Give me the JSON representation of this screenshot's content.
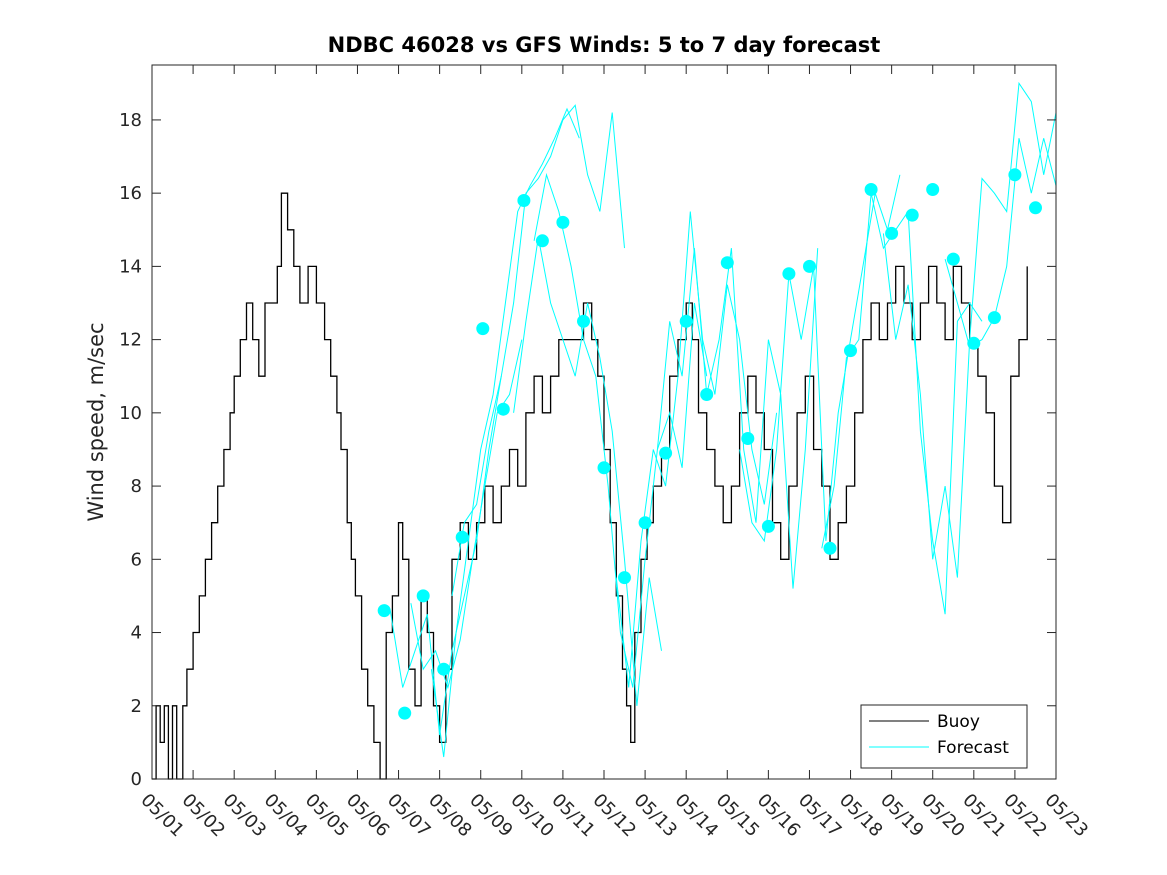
{
  "chart_data": {
    "type": "line",
    "title": "NDBC 46028 vs GFS Winds: 5 to 7 day forecast",
    "xlabel": "",
    "ylabel": "Wind speed, m/sec",
    "x_unit": "day of month (May)",
    "xlim": [
      1,
      23
    ],
    "ylim": [
      0,
      19.5
    ],
    "x_ticks": [
      1,
      2,
      3,
      4,
      5,
      6,
      7,
      8,
      9,
      10,
      11,
      12,
      13,
      14,
      15,
      16,
      17,
      18,
      19,
      20,
      21,
      22,
      23
    ],
    "x_tick_labels": [
      "05/01",
      "05/02",
      "05/03",
      "05/04",
      "05/05",
      "05/06",
      "05/07",
      "05/08",
      "05/09",
      "05/10",
      "05/11",
      "05/12",
      "05/13",
      "05/14",
      "05/15",
      "05/16",
      "05/17",
      "05/18",
      "05/19",
      "05/20",
      "05/21",
      "05/22",
      "05/23"
    ],
    "y_ticks": [
      0,
      2,
      4,
      6,
      8,
      10,
      12,
      14,
      16,
      18
    ],
    "grid": false,
    "legend": {
      "position": "bottom-right",
      "entries": [
        "Buoy",
        "Forecast"
      ]
    },
    "colors": {
      "buoy": "#000000",
      "forecast": "#00ffff"
    },
    "series": [
      {
        "name": "Buoy",
        "kind": "line",
        "x": [
          1.0,
          1.1,
          1.2,
          1.3,
          1.4,
          1.5,
          1.6,
          1.75,
          1.85,
          2.0,
          2.15,
          2.3,
          2.45,
          2.6,
          2.75,
          2.9,
          3.0,
          3.15,
          3.3,
          3.45,
          3.6,
          3.75,
          3.9,
          4.05,
          4.15,
          4.3,
          4.45,
          4.6,
          4.8,
          5.0,
          5.2,
          5.35,
          5.5,
          5.6,
          5.75,
          5.85,
          5.95,
          6.1,
          6.25,
          6.4,
          6.55,
          6.7,
          6.85,
          7.0,
          7.1,
          7.25,
          7.4,
          7.55,
          7.7,
          7.85,
          8.0,
          8.15,
          8.3,
          8.5,
          8.7,
          8.9,
          9.1,
          9.3,
          9.5,
          9.7,
          9.9,
          10.1,
          10.3,
          10.5,
          10.7,
          10.9,
          11.1,
          11.3,
          11.5,
          11.7,
          11.85,
          12.0,
          12.15,
          12.3,
          12.45,
          12.55,
          12.65,
          12.75,
          12.9,
          13.05,
          13.2,
          13.4,
          13.6,
          13.8,
          14.0,
          14.15,
          14.3,
          14.5,
          14.7,
          14.9,
          15.1,
          15.3,
          15.5,
          15.7,
          15.9,
          16.1,
          16.3,
          16.5,
          16.7,
          16.9,
          17.1,
          17.3,
          17.5,
          17.7,
          17.9,
          18.1,
          18.3,
          18.5,
          18.7,
          18.9,
          19.1,
          19.3,
          19.5,
          19.7,
          19.9,
          20.1,
          20.3,
          20.5,
          20.7,
          20.9,
          21.1,
          21.3,
          21.5,
          21.7,
          21.9,
          22.1,
          22.3
        ],
        "y": [
          0,
          2,
          1,
          2,
          0,
          2,
          0,
          2,
          3,
          4,
          5,
          6,
          7,
          8,
          9,
          10,
          11,
          12,
          13,
          12,
          11,
          13,
          13,
          14,
          16,
          15,
          14,
          13,
          14,
          13,
          12,
          11,
          10,
          9,
          7,
          6,
          5,
          3,
          2,
          1,
          0,
          4,
          5,
          7,
          6,
          3,
          2,
          5,
          4,
          2,
          1,
          3,
          6,
          7,
          6,
          7,
          8,
          7,
          8,
          9,
          8,
          10,
          11,
          10,
          11,
          12,
          12,
          12,
          13,
          12,
          11,
          9,
          7,
          5,
          3,
          2,
          1,
          4,
          6,
          7,
          8,
          9,
          11,
          12,
          13,
          12,
          10,
          9,
          8,
          7,
          8,
          10,
          11,
          10,
          9,
          7,
          6,
          8,
          10,
          11,
          9,
          8,
          6,
          7,
          8,
          10,
          12,
          13,
          12,
          13,
          14,
          13,
          12,
          13,
          14,
          13,
          12,
          14,
          13,
          12,
          11,
          10,
          8,
          7,
          11,
          12,
          14
        ]
      },
      {
        "name": "Forecast",
        "kind": "line",
        "x": [
          6.8,
          7.1,
          7.4,
          7.7,
          8.0,
          8.3,
          8.6,
          8.9,
          9.2,
          9.5
        ],
        "y": [
          4.6,
          2.5,
          3.5,
          4.5,
          1.2,
          3.5,
          5.0,
          6.5,
          9.0,
          11.0
        ]
      },
      {
        "name": "Forecast",
        "kind": "line",
        "x": [
          7.3,
          7.6,
          7.9,
          8.2,
          8.5,
          8.8,
          9.1,
          9.4,
          9.7,
          10.0
        ],
        "y": [
          4.8,
          3.0,
          3.5,
          2.5,
          3.8,
          6.0,
          8.0,
          10.0,
          10.5,
          12.0
        ]
      },
      {
        "name": "Forecast",
        "kind": "line",
        "x": [
          7.8,
          8.1,
          8.4,
          8.7,
          9.0,
          9.3,
          9.6,
          9.9,
          10.2,
          10.5,
          10.8,
          11.1,
          11.4
        ],
        "y": [
          3.0,
          0.6,
          4.0,
          6.5,
          9.0,
          10.5,
          13.0,
          15.5,
          16.2,
          16.8,
          17.5,
          18.3,
          17.5
        ]
      },
      {
        "name": "Forecast",
        "kind": "line",
        "x": [
          8.3,
          8.6,
          8.9,
          9.2,
          9.5,
          9.8,
          10.1,
          10.4,
          10.7,
          11.0,
          11.3,
          11.6,
          11.9,
          12.2,
          12.5
        ],
        "y": [
          5.0,
          7.0,
          7.5,
          9.5,
          11.0,
          13.0,
          16.0,
          16.4,
          17.0,
          18.0,
          18.4,
          16.5,
          15.5,
          18.2,
          14.5
        ]
      },
      {
        "name": "Forecast",
        "kind": "line",
        "x": [
          9.8,
          10.1,
          10.4,
          10.7,
          11.0,
          11.3,
          11.6,
          11.9,
          12.2,
          12.5,
          12.8,
          13.1,
          13.4
        ],
        "y": [
          10.0,
          12.5,
          14.8,
          13.0,
          12.0,
          11.0,
          13.0,
          11.5,
          9.5,
          6.0,
          2.0,
          5.5,
          3.5
        ]
      },
      {
        "name": "Forecast",
        "kind": "line",
        "x": [
          10.3,
          10.6,
          10.9,
          11.2,
          11.5,
          11.8,
          12.1,
          12.4,
          12.7,
          13.0,
          13.3,
          13.6,
          13.9,
          14.2,
          14.5
        ],
        "y": [
          14.7,
          16.5,
          15.5,
          14.0,
          12.0,
          11.0,
          8.0,
          4.0,
          2.5,
          6.0,
          9.0,
          10.0,
          8.5,
          13.0,
          11.0
        ]
      },
      {
        "name": "Forecast",
        "kind": "line",
        "x": [
          12.3,
          12.6,
          12.9,
          13.2,
          13.5,
          13.8,
          14.1,
          14.4,
          14.7,
          15.0,
          15.3,
          15.6,
          15.9,
          16.2
        ],
        "y": [
          5.5,
          2.5,
          6.5,
          9.0,
          8.0,
          11.0,
          15.5,
          12.0,
          10.5,
          13.5,
          12.0,
          9.0,
          7.5,
          10.0
        ]
      },
      {
        "name": "Forecast",
        "kind": "line",
        "x": [
          13.3,
          13.6,
          13.9,
          14.2,
          14.5,
          14.8,
          15.1,
          15.4,
          15.7,
          16.0,
          16.3,
          16.6,
          16.9,
          17.2
        ],
        "y": [
          9.0,
          12.5,
          11.0,
          14.5,
          10.5,
          12.0,
          14.5,
          9.0,
          7.0,
          12.0,
          10.5,
          5.2,
          9.0,
          14.5
        ]
      },
      {
        "name": "Forecast",
        "kind": "line",
        "x": [
          15.3,
          15.6,
          15.9,
          16.2,
          16.5,
          16.8,
          17.1,
          17.4,
          17.7,
          18.0,
          18.3,
          18.6,
          18.9,
          19.2
        ],
        "y": [
          9.0,
          7.0,
          6.5,
          9.0,
          13.8,
          12.0,
          14.0,
          6.5,
          10.0,
          12.0,
          14.0,
          16.0,
          15.0,
          16.5
        ]
      },
      {
        "name": "Forecast",
        "kind": "line",
        "x": [
          17.3,
          17.6,
          17.9,
          18.2,
          18.5,
          18.8,
          19.1,
          19.4,
          19.7,
          20.0,
          20.3,
          20.6,
          20.9,
          21.2
        ],
        "y": [
          6.3,
          8.0,
          11.5,
          12.0,
          16.0,
          14.5,
          15.0,
          15.5,
          9.5,
          6.5,
          4.5,
          12.5,
          13.0,
          12.5
        ]
      },
      {
        "name": "Forecast",
        "kind": "line",
        "x": [
          18.8,
          19.1,
          19.4,
          19.7,
          20.0,
          20.3,
          20.6,
          20.9,
          21.2,
          21.5,
          21.8,
          22.1,
          22.4,
          22.7,
          23.0
        ],
        "y": [
          14.9,
          12.0,
          13.5,
          10.5,
          6.0,
          8.0,
          5.5,
          12.0,
          16.4,
          16.0,
          15.5,
          19.0,
          18.5,
          16.5,
          18.2
        ]
      },
      {
        "name": "Forecast",
        "kind": "line",
        "x": [
          20.3,
          20.6,
          20.9,
          21.2,
          21.5,
          21.8,
          22.1,
          22.4,
          22.7,
          23.0
        ],
        "y": [
          14.2,
          13.0,
          11.8,
          12.0,
          12.6,
          14.0,
          17.5,
          16.0,
          17.5,
          16.2
        ]
      },
      {
        "name": "Forecast",
        "kind": "markers",
        "x": [
          6.65,
          7.15,
          7.6,
          8.1,
          8.55,
          9.05,
          9.55,
          10.05,
          10.5,
          11.0,
          11.5,
          12.0,
          12.5,
          13.0,
          13.5,
          14.0,
          14.5,
          15.0,
          15.5,
          16.0,
          16.5,
          17.0,
          17.5,
          18.0,
          18.5,
          19.0,
          19.5,
          20.0,
          20.5,
          21.0,
          21.5,
          22.0,
          22.5
        ],
        "y": [
          4.6,
          1.8,
          5.0,
          3.0,
          6.6,
          12.3,
          10.1,
          15.8,
          14.7,
          15.2,
          12.5,
          8.5,
          5.5,
          7.0,
          8.9,
          12.5,
          10.5,
          14.1,
          9.3,
          6.9,
          13.8,
          14.0,
          6.3,
          11.7,
          16.1,
          14.9,
          15.4,
          16.1,
          14.2,
          11.9,
          12.6,
          16.5,
          15.6
        ]
      }
    ]
  }
}
